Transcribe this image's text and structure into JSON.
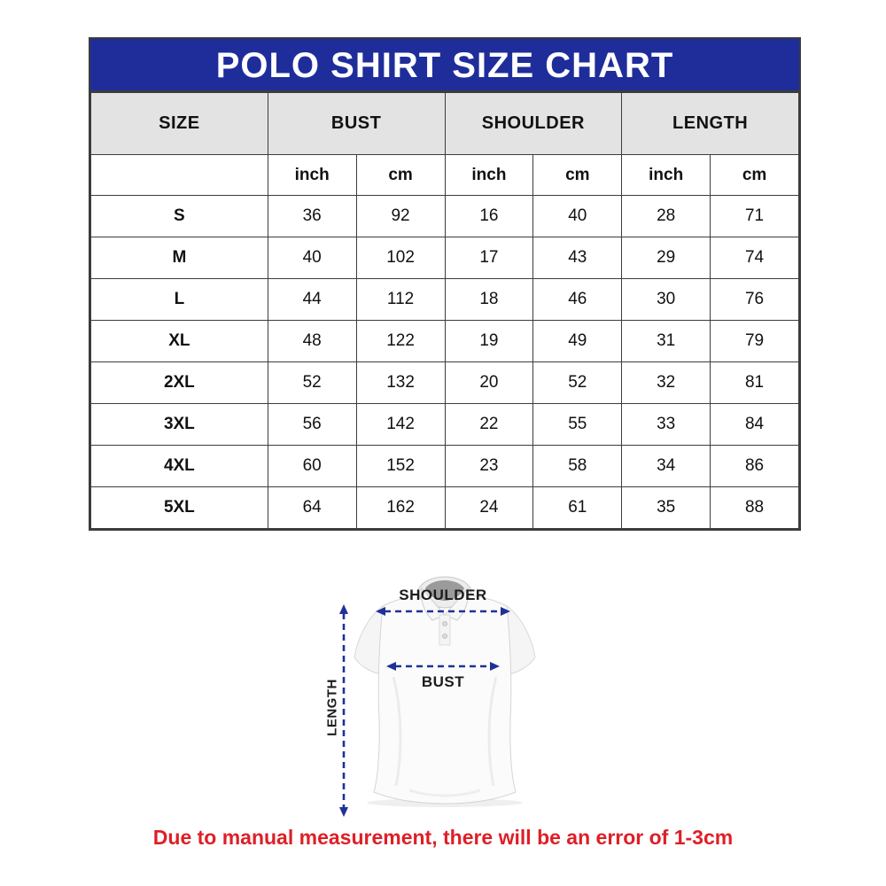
{
  "chart_data": {
    "type": "table",
    "title": "POLO SHIRT SIZE CHART",
    "group_headers": [
      "SIZE",
      "BUST",
      "SHOULDER",
      "LENGTH"
    ],
    "unit_headers": [
      "inch",
      "cm",
      "inch",
      "cm",
      "inch",
      "cm"
    ],
    "rows": [
      {
        "size": "S",
        "values": [
          36,
          92,
          16,
          40,
          28,
          71
        ]
      },
      {
        "size": "M",
        "values": [
          40,
          102,
          17,
          43,
          29,
          74
        ]
      },
      {
        "size": "L",
        "values": [
          44,
          112,
          18,
          46,
          30,
          76
        ]
      },
      {
        "size": "XL",
        "values": [
          48,
          122,
          19,
          49,
          31,
          79
        ]
      },
      {
        "size": "2XL",
        "values": [
          52,
          132,
          20,
          52,
          32,
          81
        ]
      },
      {
        "size": "3XL",
        "values": [
          56,
          142,
          22,
          55,
          33,
          84
        ]
      },
      {
        "size": "4XL",
        "values": [
          60,
          152,
          23,
          58,
          34,
          86
        ]
      },
      {
        "size": "5XL",
        "values": [
          64,
          162,
          24,
          61,
          35,
          88
        ]
      }
    ]
  },
  "diagram": {
    "shoulder_label": "SHOULDER",
    "bust_label": "BUST",
    "length_label": "LENGTH"
  },
  "footnote": "Due to manual measurement, there will be an error of 1-3cm",
  "colors": {
    "header_blue": "#1F2D9B",
    "header_gray": "#E3E3E3",
    "arrow_blue": "#1F3199",
    "note_red": "#DE1F26",
    "border_col": "#3C3C3C"
  }
}
